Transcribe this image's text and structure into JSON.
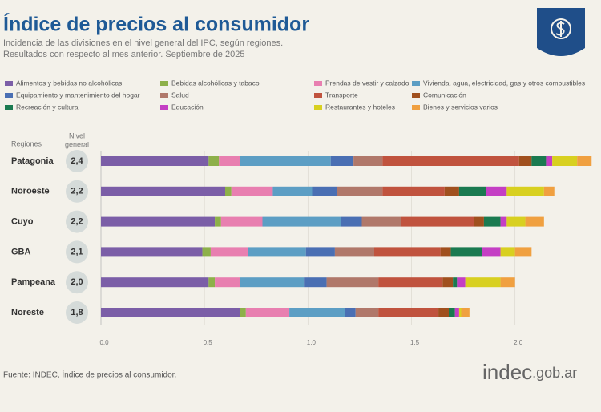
{
  "chart_data": {
    "type": "stacked_barh",
    "title": "Índice de precios al consumidor",
    "subtitle": [
      "Incidencia de las divisiones en el nivel general del IPC, según regiones.",
      "Resultados con respecto al mes anterior. Septiembre de 2025"
    ],
    "category_header": "Regiones",
    "total_header": [
      "Nivel",
      "general"
    ],
    "categories": [
      "Patagonia",
      "Noroeste",
      "Cuyo",
      "GBA",
      "Pampeana",
      "Noreste"
    ],
    "totals": [
      2.4,
      2.2,
      2.2,
      2.1,
      2.0,
      1.8
    ],
    "total_labels": [
      "2,4",
      "2,2",
      "2,2",
      "2,1",
      "2,0",
      "1,8"
    ],
    "series": [
      {
        "name": "Alimentos y bebidas no alcohólicas",
        "color": "#7b5ea7",
        "values": [
          0.52,
          0.6,
          0.55,
          0.49,
          0.52,
          0.67
        ]
      },
      {
        "name": "Bebidas alcohólicas y tabaco",
        "color": "#8db04a",
        "values": [
          0.05,
          0.03,
          0.03,
          0.04,
          0.03,
          0.03
        ]
      },
      {
        "name": "Prendas de vestir y calzado",
        "color": "#e87fb0",
        "values": [
          0.1,
          0.2,
          0.2,
          0.18,
          0.12,
          0.21
        ]
      },
      {
        "name": "Vivienda, agua, electricidad, gas y otros combustibles",
        "color": "#5c9ec4",
        "values": [
          0.44,
          0.19,
          0.38,
          0.28,
          0.31,
          0.27
        ]
      },
      {
        "name": "Equipamiento y mantenimiento del hogar",
        "color": "#4a6fb3",
        "values": [
          0.11,
          0.12,
          0.1,
          0.14,
          0.11,
          0.05
        ]
      },
      {
        "name": "Salud",
        "color": "#b0786a",
        "values": [
          0.14,
          0.22,
          0.19,
          0.19,
          0.25,
          0.11
        ]
      },
      {
        "name": "Transporte",
        "color": "#c0533e",
        "values": [
          0.66,
          0.3,
          0.35,
          0.32,
          0.31,
          0.29
        ]
      },
      {
        "name": "Comunicación",
        "color": "#a0501e",
        "values": [
          0.06,
          0.07,
          0.05,
          0.05,
          0.05,
          0.05
        ]
      },
      {
        "name": "Recreación y cultura",
        "color": "#1a7a50",
        "values": [
          0.07,
          0.13,
          0.08,
          0.15,
          0.02,
          0.03
        ]
      },
      {
        "name": "Educación",
        "color": "#c43fc4",
        "values": [
          0.03,
          0.1,
          0.03,
          0.09,
          0.04,
          0.02
        ]
      },
      {
        "name": "Restaurantes y hoteles",
        "color": "#d8d020",
        "values": [
          0.12,
          0.18,
          0.09,
          0.07,
          0.17,
          0.01
        ]
      },
      {
        "name": "Bienes y servicios varios",
        "color": "#f0a040",
        "values": [
          0.07,
          0.05,
          0.09,
          0.08,
          0.07,
          0.04
        ]
      }
    ],
    "xlim": [
      0,
      2.4
    ],
    "xticks": [
      {
        "value": 0,
        "label": "0,0"
      },
      {
        "value": 0.5,
        "label": "0,5"
      },
      {
        "value": 1,
        "label": "1,0"
      },
      {
        "value": 1.5,
        "label": "1,5"
      },
      {
        "value": 2,
        "label": "2,0"
      }
    ],
    "grid": true,
    "source": "Fuente: INDEC, Índice de precios al consumidor.",
    "brand": [
      "indec",
      ".gob.ar"
    ]
  }
}
